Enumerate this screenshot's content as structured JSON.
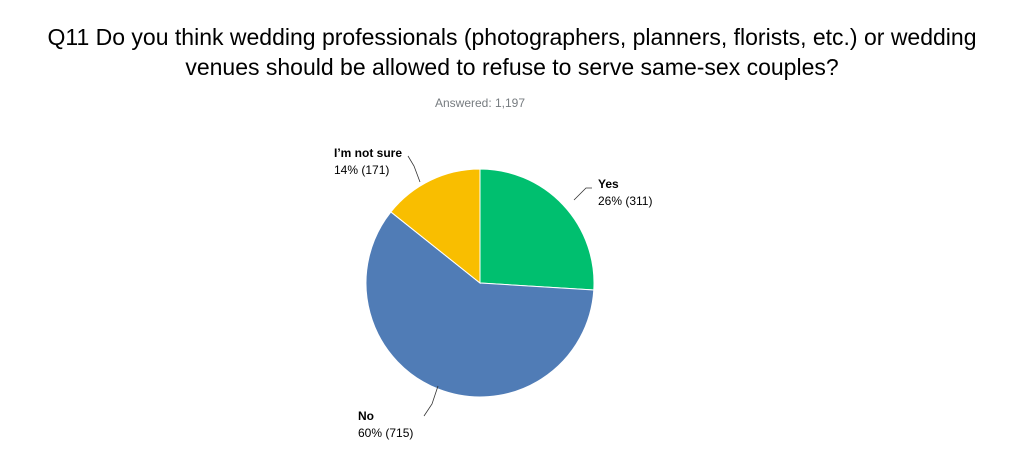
{
  "title_line1": "Q11 Do you think wedding professionals (photographers, planners, florists, etc.) or wedding",
  "title_line2": "venues should be allowed to refuse to serve same-sex couples?",
  "answered": "Answered: 1,197",
  "chart_data": {
    "type": "pie",
    "title": "Q11 Do you think wedding professionals (photographers, planners, florists, etc.) or wedding venues should be allowed to refuse to serve same-sex couples?",
    "subtitle": "Answered: 1,197",
    "total": 1197,
    "slices": [
      {
        "name": "Yes",
        "count": 311,
        "percent": 26,
        "pct_label": "26% (311)",
        "color": "#00bf6f"
      },
      {
        "name": "No",
        "count": 715,
        "percent": 60,
        "pct_label": "60% (715)",
        "color": "#507cb6"
      },
      {
        "name": "I'm not sure",
        "count": 171,
        "percent": 14,
        "pct_label": "14% (171)",
        "color": "#f9be00"
      }
    ],
    "legend": "none"
  }
}
